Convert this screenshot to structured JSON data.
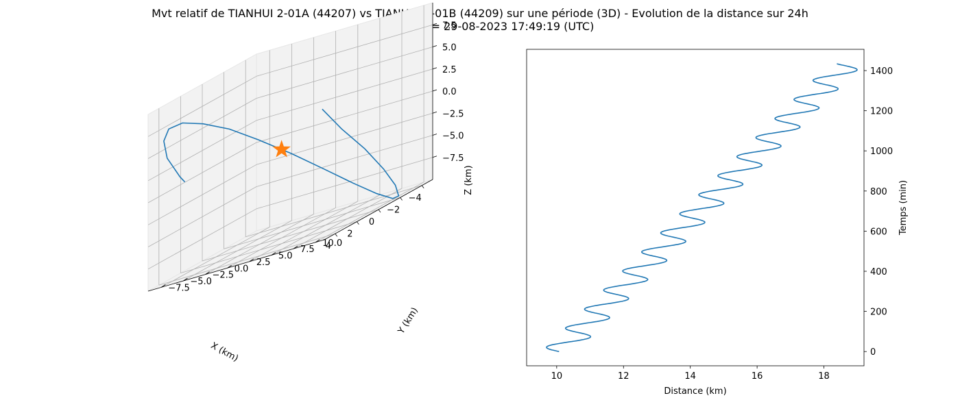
{
  "figure": {
    "title_line1": "Mvt relatif de TIANHUI 2-01A (44207) vs TIANHUI 2-01B (44209) sur une période (3D) - Evolution de la distance sur 24h",
    "title_line2": "Date début = 29-08-2023 17:49:19 (UTC)"
  },
  "colors": {
    "series": "#1f77b4",
    "marker": "#ff7f0e",
    "pane": "#f2f2f2",
    "grid": "#b0b0b0"
  },
  "chart_data": [
    {
      "type": "line",
      "projection": "3d",
      "xlabel": "X (km)",
      "ylabel": "Y (km)",
      "zlabel": "Z (km)",
      "xticks": [
        "−4",
        "−2",
        "0",
        "2",
        "4"
      ],
      "yticks": [
        "−7.5",
        "−5.0",
        "−2.5",
        "0.0",
        "2.5",
        "5.0",
        "7.5",
        "10.0"
      ],
      "zticks": [
        "7.5",
        "5.0",
        "2.5",
        "0.0",
        "−2.5",
        "−5.0",
        "−7.5"
      ],
      "xlim": [
        -5,
        5
      ],
      "ylim": [
        -9,
        11
      ],
      "zlim": [
        -10,
        10
      ],
      "grid": true,
      "series": [
        {
          "kind": "relative-orbit",
          "points": [
            [
              -4.4,
              -0.8,
              1.8
            ],
            [
              -4.8,
              0.9,
              -1.2
            ],
            [
              -5.0,
              3.3,
              -4.3
            ],
            [
              -4.7,
              5.8,
              -7.1
            ],
            [
              -4.0,
              8.0,
              -9.1
            ],
            [
              -3.0,
              9.6,
              -10.1
            ],
            [
              -1.8,
              10.4,
              -9.8
            ],
            [
              -0.5,
              10.2,
              -8.3
            ],
            [
              0.8,
              9.1,
              -5.9
            ],
            [
              2.0,
              7.2,
              -2.9
            ],
            [
              3.0,
              4.8,
              0.2
            ],
            [
              3.9,
              2.2,
              3.1
            ],
            [
              4.5,
              -0.4,
              5.5
            ],
            [
              4.9,
              -2.9,
              7.1
            ],
            [
              5.0,
              -5.1,
              7.9
            ],
            [
              4.8,
              -6.9,
              7.6
            ],
            [
              4.2,
              -8.2,
              6.2
            ],
            [
              3.4,
              -8.8,
              3.9
            ],
            [
              2.3,
              -8.7,
              1.0
            ],
            [
              2.1,
              -8.4,
              0.2
            ]
          ]
        },
        {
          "kind": "target",
          "marker": "star",
          "point": [
            0,
            0,
            0
          ]
        }
      ]
    },
    {
      "type": "line",
      "xlabel": "Distance (km)",
      "ylabel": "Temps (min)",
      "xlim": [
        9.1,
        19.2
      ],
      "ylim": [
        -71,
        1506
      ],
      "xticks": [
        10,
        12,
        14,
        16,
        18
      ],
      "yticks": [
        0,
        200,
        400,
        600,
        800,
        1000,
        1200,
        1400
      ],
      "grid": false,
      "series": [
        {
          "model": "distance = 10.07 + 0.006*t - 0.51*sin(2*pi*t/95)",
          "x": [
            10.07,
            9.8,
            9.65,
            10.03,
            10.53,
            10.69,
            10.37,
            10.23,
            10.61,
            11.11,
            11.28,
            10.95,
            10.78,
            11.18,
            11.69,
            11.87,
            11.55,
            11.34,
            11.75,
            12.27,
            12.46,
            12.14,
            11.91,
            12.31,
            12.85,
            13.05,
            12.73,
            12.47,
            12.88,
            13.43,
            13.64,
            13.33,
            13.03,
            13.45,
            14.01,
            14.23,
            13.92,
            13.6,
            14.02,
            14.59,
            14.82,
            14.51,
            14.17,
            14.6,
            15.16,
            15.41,
            15.1,
            14.74,
            15.17,
            15.74,
            16.0,
            15.69,
            15.3,
            15.74,
            16.32,
            16.59,
            16.28,
            15.87,
            16.32,
            16.9,
            17.18,
            16.87,
            16.44,
            16.89,
            17.48,
            17.78,
            17.46,
            17.01,
            17.46,
            18.06,
            18.37,
            18.05,
            17.57,
            18.04,
            18.63,
            18.73
          ],
          "y": [
            0,
            18,
            36,
            54,
            72,
            90,
            108,
            126,
            144,
            162,
            180,
            198,
            216,
            234,
            252,
            270,
            288,
            306,
            324,
            342,
            360,
            378,
            396,
            414,
            432,
            450,
            468,
            486,
            504,
            522,
            540,
            558,
            576,
            594,
            612,
            630,
            648,
            666,
            684,
            702,
            720,
            738,
            756,
            774,
            792,
            810,
            828,
            846,
            864,
            882,
            900,
            918,
            936,
            954,
            972,
            990,
            1008,
            1026,
            1044,
            1062,
            1080,
            1098,
            1116,
            1134,
            1152,
            1170,
            1188,
            1206,
            1224,
            1242,
            1260,
            1278,
            1296,
            1314,
            1332,
            1350
          ]
        }
      ]
    }
  ]
}
